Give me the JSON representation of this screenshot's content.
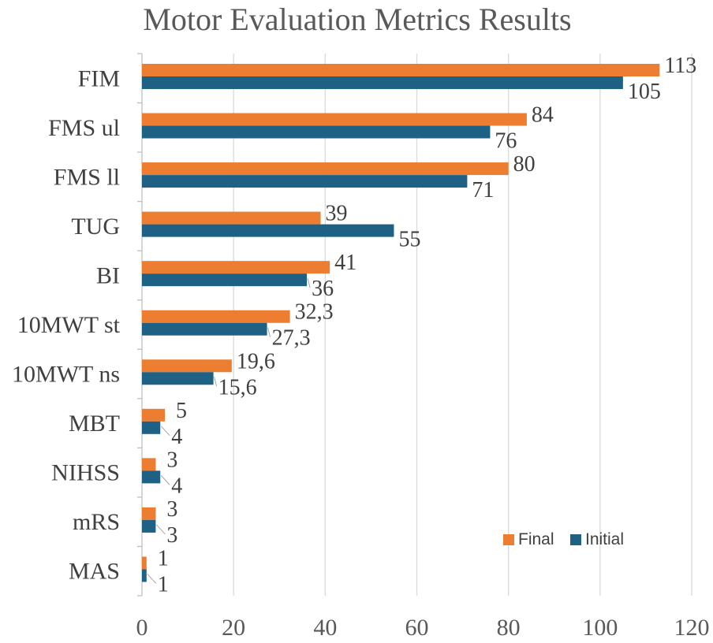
{
  "chart_data": {
    "type": "bar",
    "orientation": "horizontal",
    "title": "Motor Evaluation Metrics Results",
    "categories": [
      "FIM",
      "FMS ul",
      "FMS ll",
      "TUG",
      "BI",
      "10MWT st",
      "10MWT ns",
      "MBT",
      "NIHSS",
      "mRS",
      "MAS"
    ],
    "series": [
      {
        "name": "Final",
        "color": "#ED7D31",
        "values": [
          113,
          84,
          80,
          39,
          41,
          32.3,
          19.6,
          5,
          3,
          3,
          1
        ],
        "labels": [
          "113",
          "84",
          "80",
          "39",
          "41",
          "32,3",
          "19,6",
          "5",
          "3",
          "3",
          "1"
        ]
      },
      {
        "name": "Initial",
        "color": "#1F6185",
        "values": [
          105,
          76,
          71,
          55,
          36,
          27.3,
          15.6,
          4,
          4,
          3,
          1
        ],
        "labels": [
          "105",
          "76",
          "71",
          "55",
          "36",
          "27,3",
          "15,6",
          "4",
          "4",
          "3",
          "1"
        ]
      }
    ],
    "xlim": [
      0,
      120
    ],
    "xticks": [
      0,
      20,
      40,
      60,
      80,
      100,
      120
    ],
    "grid": true,
    "legend": "bottom-right"
  }
}
